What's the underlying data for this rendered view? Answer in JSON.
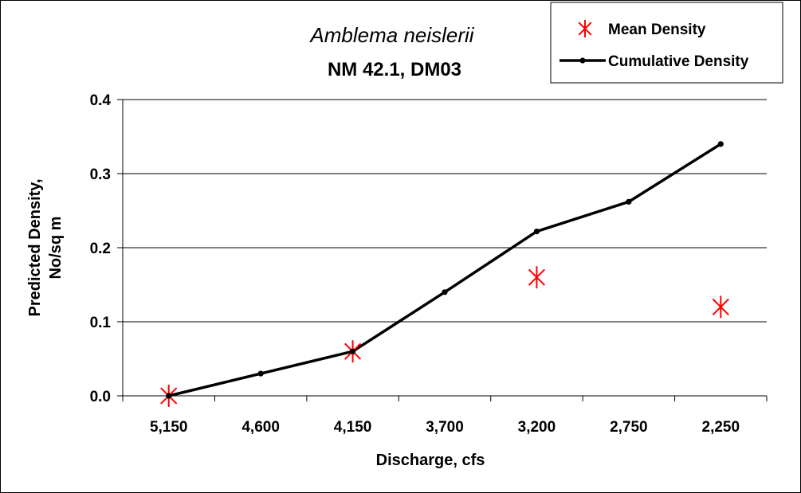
{
  "chart_data": {
    "type": "line",
    "title": "Amblema neislerii",
    "subtitle": "NM 42.1, DM03",
    "xlabel": "Discharge, cfs",
    "ylabel_line1": "Predicted Density,",
    "ylabel_line2": "No/sq m",
    "categories": [
      "5,150",
      "4,600",
      "4,150",
      "3,700",
      "3,200",
      "2,750",
      "2,250"
    ],
    "ylim": [
      0,
      0.4
    ],
    "yticks": [
      "0.0",
      "0.1",
      "0.2",
      "0.3",
      "0.4"
    ],
    "grid": true,
    "legend_position": "top-right",
    "series": [
      {
        "name": "Mean Density",
        "kind": "scatter",
        "marker": "asterisk",
        "color": "#ff0000",
        "values": [
          0.0,
          null,
          0.06,
          null,
          0.16,
          null,
          0.12
        ]
      },
      {
        "name": "Cumulative Density",
        "kind": "line",
        "marker": "dot",
        "color": "#000000",
        "values": [
          0.0,
          0.03,
          0.06,
          0.14,
          0.222,
          0.262,
          0.34
        ]
      }
    ]
  }
}
